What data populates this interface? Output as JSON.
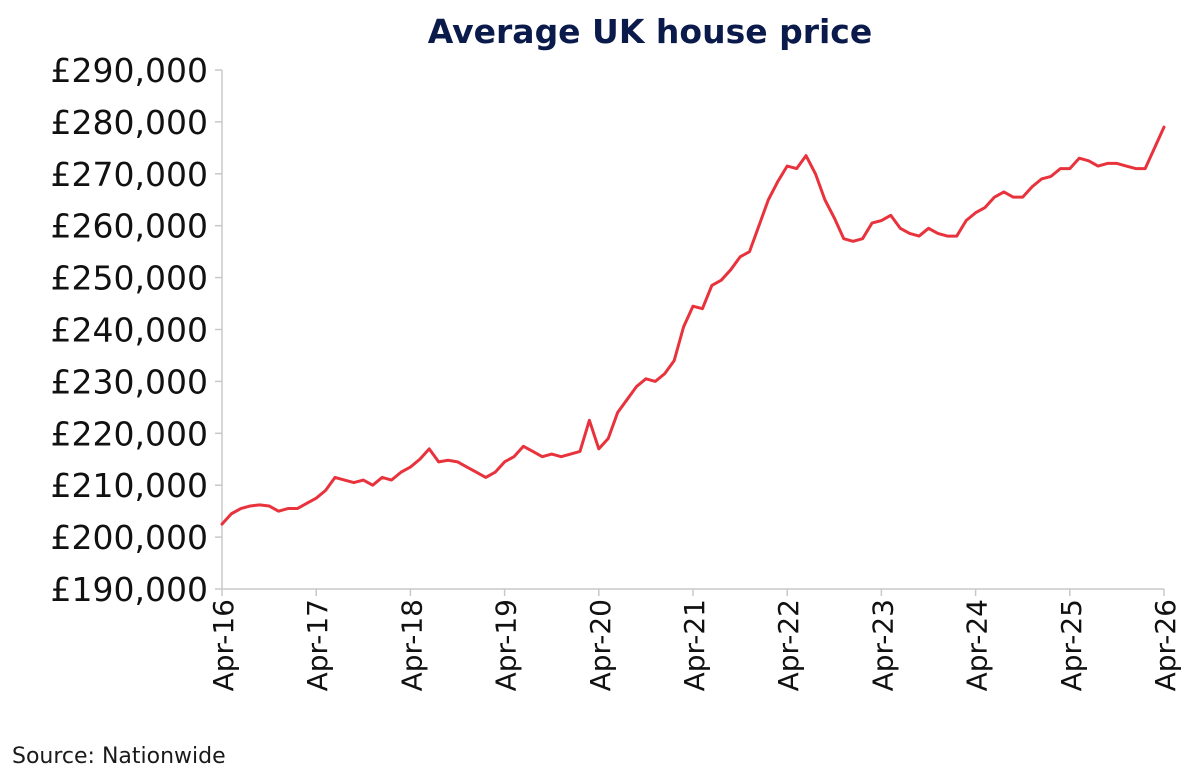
{
  "chart_data": {
    "type": "line",
    "title": "Average UK house price",
    "source": "Source: Nationwide",
    "xlabel": "",
    "ylabel": "",
    "ylim": [
      190000,
      290000
    ],
    "yticks": [
      190000,
      200000,
      210000,
      220000,
      230000,
      240000,
      250000,
      260000,
      270000,
      280000,
      290000
    ],
    "ytick_labels": [
      "£190,000",
      "£200,000",
      "£210,000",
      "£220,000",
      "£230,000",
      "£240,000",
      "£250,000",
      "£260,000",
      "£270,000",
      "£280,000",
      "£290,000"
    ],
    "xtick_labels": [
      "Apr-16",
      "Apr-17",
      "Apr-18",
      "Apr-19",
      "Apr-20",
      "Apr-21",
      "Apr-22",
      "Apr-23",
      "Apr-24",
      "Apr-25",
      "Apr-26"
    ],
    "x_start": "Apr-16",
    "x_end": "Apr-26",
    "grid": false,
    "legend": "none",
    "line_color": "#e8323c",
    "series": [
      {
        "values": [
          202500,
          204500,
          205500,
          206000,
          206200,
          206000,
          205000,
          205500,
          205500,
          206500,
          207500,
          209000,
          211500,
          211000,
          210500,
          211000,
          210000,
          211500,
          211000,
          212500,
          213500,
          215000,
          217000,
          214500,
          214800,
          214500,
          213500,
          212500,
          211500,
          212500,
          214500,
          215500,
          217500,
          216500,
          215500,
          216000,
          215500,
          216000,
          216500,
          222500,
          217000,
          219000,
          224000,
          226500,
          229000,
          230500,
          230000,
          231500,
          234000,
          240500,
          244500,
          244000,
          248500,
          249500,
          251500,
          254000,
          255000,
          260000,
          265000,
          268500,
          271500,
          271000,
          273500,
          270000,
          265000,
          261500,
          257500,
          257000,
          257500,
          260500,
          261000,
          262000,
          259500,
          258500,
          258000,
          259500,
          258500,
          258000,
          258000,
          261000,
          262500,
          263500,
          265500,
          266500,
          265500,
          265500,
          267500,
          269000,
          269500,
          271000,
          271000,
          273000,
          272500,
          271500,
          272000,
          272000,
          271500,
          271000,
          271000,
          275000,
          279000
        ]
      }
    ]
  }
}
